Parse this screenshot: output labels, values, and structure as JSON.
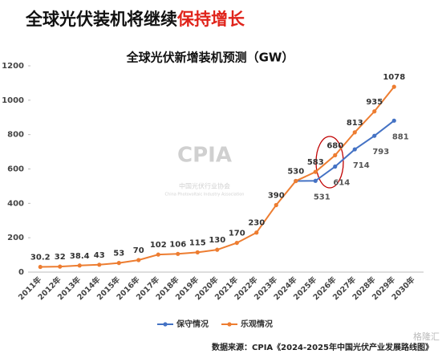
{
  "headline": {
    "text": "全球光伏装机将继续",
    "highlight": "保持增长"
  },
  "watermark": {
    "logo": "CPIA",
    "name": "中国光伏行业协会",
    "english": "China Photovoltaic Industry Association"
  },
  "chart_data": {
    "type": "line",
    "title": "全球光伏新增装机预测（GW）",
    "categories": [
      "2011年",
      "2012年",
      "2013年",
      "2014年",
      "2015年",
      "2016年",
      "2017年",
      "2018年",
      "2019年",
      "2020年",
      "2021年",
      "2022年",
      "2023年",
      "2024年",
      "2025年",
      "2026年",
      "2027年",
      "2028年",
      "2029年",
      "2030年"
    ],
    "series": [
      {
        "name": "保守情况",
        "color": "#4472c4",
        "values": [
          null,
          null,
          null,
          null,
          null,
          null,
          null,
          null,
          null,
          null,
          null,
          null,
          null,
          530,
          531,
          614,
          714,
          793,
          881,
          null
        ]
      },
      {
        "name": "乐观情况",
        "color": "#ed7d31",
        "values": [
          30.2,
          32,
          38.4,
          43,
          53,
          70,
          102,
          106,
          115,
          130,
          170,
          230,
          390,
          530,
          583,
          680,
          813,
          935,
          1078,
          null
        ]
      }
    ],
    "ylim": [
      0,
      1200
    ],
    "yticks": [
      0,
      200,
      400,
      600,
      800,
      1000,
      1200
    ],
    "grid": false,
    "legend": "bottom"
  },
  "source": "数据来源：CPIA《2024-2025年中国光伏产业发展路线图》",
  "brand": "格隆汇"
}
